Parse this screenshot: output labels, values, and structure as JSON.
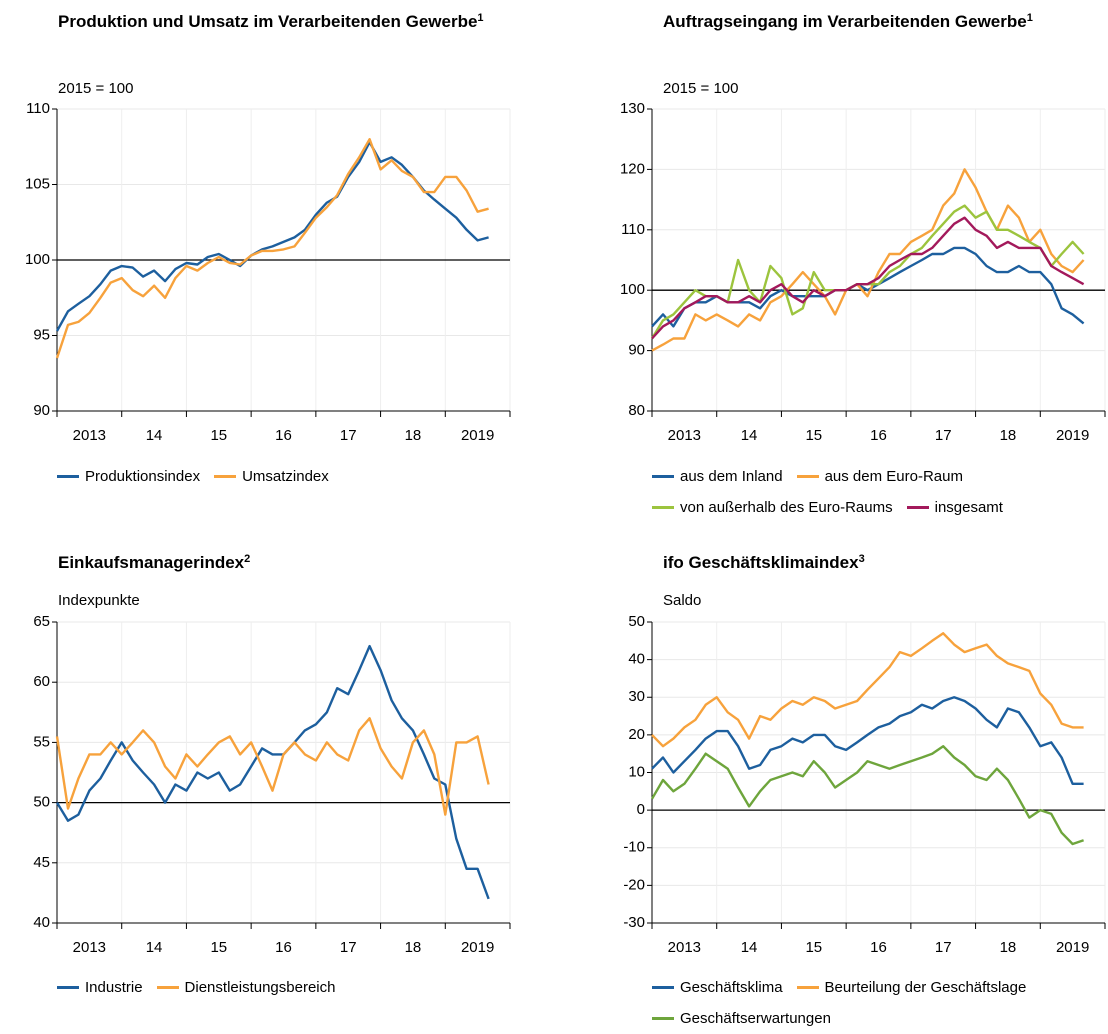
{
  "chart_data": [
    {
      "type": "line",
      "title": "Produktion und Umsatz im Verarbeitenden Gewerbe",
      "footnote": "1",
      "unit": "2015 = 100",
      "x": [
        2013,
        2013.17,
        2013.33,
        2013.5,
        2013.67,
        2013.83,
        2014,
        2014.17,
        2014.33,
        2014.5,
        2014.67,
        2014.83,
        2015,
        2015.17,
        2015.33,
        2015.5,
        2015.67,
        2015.83,
        2016,
        2016.17,
        2016.33,
        2016.5,
        2016.67,
        2016.83,
        2017,
        2017.17,
        2017.33,
        2017.5,
        2017.67,
        2017.83,
        2018,
        2018.17,
        2018.33,
        2018.5,
        2018.67,
        2018.83,
        2019,
        2019.17,
        2019.33,
        2019.5,
        2019.67
      ],
      "xlim": [
        2013,
        2020
      ],
      "xticks": [
        2013,
        2014,
        2015,
        2016,
        2017,
        2018,
        2019,
        2020
      ],
      "xlabels": [
        "2013",
        "14",
        "15",
        "16",
        "17",
        "18",
        "2019"
      ],
      "ylim": [
        90,
        110
      ],
      "yticks": [
        90,
        95,
        100,
        105,
        110
      ],
      "reference_line": 100,
      "grid": true,
      "series": [
        {
          "name": "Produktionsindex",
          "color": "#1d5f9e",
          "values": [
            95.3,
            96.6,
            97.1,
            97.6,
            98.4,
            99.3,
            99.6,
            99.5,
            98.9,
            99.3,
            98.6,
            99.4,
            99.8,
            99.7,
            100.2,
            100.4,
            100.0,
            99.6,
            100.3,
            100.7,
            100.9,
            101.2,
            101.5,
            102.0,
            103.0,
            103.8,
            104.2,
            105.5,
            106.5,
            107.8,
            106.5,
            106.8,
            106.3,
            105.5,
            104.6,
            104.0,
            103.4,
            102.8,
            102.0,
            101.3,
            101.5
          ]
        },
        {
          "name": "Umsatzindex",
          "color": "#f7a23c",
          "values": [
            93.5,
            95.7,
            95.9,
            96.5,
            97.5,
            98.5,
            98.8,
            98.0,
            97.6,
            98.3,
            97.5,
            98.8,
            99.6,
            99.3,
            99.8,
            100.2,
            99.8,
            99.7,
            100.3,
            100.6,
            100.6,
            100.7,
            100.9,
            101.8,
            102.8,
            103.5,
            104.3,
            105.7,
            106.8,
            108.0,
            106.0,
            106.6,
            105.9,
            105.5,
            104.5,
            104.5,
            105.5,
            105.5,
            104.6,
            103.2,
            103.4
          ]
        }
      ]
    },
    {
      "type": "line",
      "title": "Auftragseingang im Verarbeitenden Gewerbe",
      "footnote": "1",
      "unit": "2015 = 100",
      "x": [
        2013,
        2013.17,
        2013.33,
        2013.5,
        2013.67,
        2013.83,
        2014,
        2014.17,
        2014.33,
        2014.5,
        2014.67,
        2014.83,
        2015,
        2015.17,
        2015.33,
        2015.5,
        2015.67,
        2015.83,
        2016,
        2016.17,
        2016.33,
        2016.5,
        2016.67,
        2016.83,
        2017,
        2017.17,
        2017.33,
        2017.5,
        2017.67,
        2017.83,
        2018,
        2018.17,
        2018.33,
        2018.5,
        2018.67,
        2018.83,
        2019,
        2019.17,
        2019.33,
        2019.5,
        2019.67
      ],
      "xlim": [
        2013,
        2020
      ],
      "xticks": [
        2013,
        2014,
        2015,
        2016,
        2017,
        2018,
        2019,
        2020
      ],
      "xlabels": [
        "2013",
        "14",
        "15",
        "16",
        "17",
        "18",
        "2019"
      ],
      "ylim": [
        80,
        130
      ],
      "yticks": [
        80,
        90,
        100,
        110,
        120,
        130
      ],
      "reference_line": 100,
      "grid": true,
      "series": [
        {
          "name": "aus dem Inland",
          "color": "#1d5f9e",
          "values": [
            94,
            96,
            94,
            97,
            98,
            98,
            99,
            98,
            98,
            98,
            97,
            99,
            100,
            99,
            99,
            99,
            99,
            100,
            100,
            101,
            100,
            101,
            102,
            103,
            104,
            105,
            106,
            106,
            107,
            107,
            106,
            104,
            103,
            103,
            104,
            103,
            103,
            101,
            97,
            96,
            94.5
          ]
        },
        {
          "name": "aus dem Euro-Raum",
          "color": "#f7a23c",
          "values": [
            90,
            91,
            92,
            92,
            96,
            95,
            96,
            95,
            94,
            96,
            95,
            98,
            99,
            101,
            103,
            101,
            99,
            96,
            100,
            101,
            99,
            103,
            106,
            106,
            108,
            109,
            110,
            114,
            116,
            120,
            117,
            113,
            110,
            114,
            112,
            108,
            110,
            106,
            104,
            103,
            105
          ]
        },
        {
          "name": "von außerhalb des Euro-Raums",
          "color": "#9cc43e",
          "values": [
            92,
            95,
            96,
            98,
            100,
            99,
            99,
            98,
            105,
            100,
            98,
            104,
            102,
            96,
            97,
            103,
            100,
            100,
            100,
            101,
            101,
            101,
            103,
            104,
            106,
            107,
            109,
            111,
            113,
            114,
            112,
            113,
            110,
            110,
            109,
            108,
            107,
            104,
            106,
            108,
            106
          ]
        },
        {
          "name": "insgesamt",
          "color": "#a3195b",
          "values": [
            92,
            94,
            95,
            97,
            98,
            99,
            99,
            98,
            98,
            99,
            98,
            100,
            101,
            99,
            98,
            100,
            99,
            100,
            100,
            101,
            101,
            102,
            104,
            105,
            106,
            106,
            107,
            109,
            111,
            112,
            110,
            109,
            107,
            108,
            107,
            107,
            107,
            104,
            103,
            102,
            101
          ]
        }
      ]
    },
    {
      "type": "line",
      "title": "Einkaufsmanagerindex",
      "footnote": "2",
      "unit": "Indexpunkte",
      "x": [
        2013,
        2013.17,
        2013.33,
        2013.5,
        2013.67,
        2013.83,
        2014,
        2014.17,
        2014.33,
        2014.5,
        2014.67,
        2014.83,
        2015,
        2015.17,
        2015.33,
        2015.5,
        2015.67,
        2015.83,
        2016,
        2016.17,
        2016.33,
        2016.5,
        2016.67,
        2016.83,
        2017,
        2017.17,
        2017.33,
        2017.5,
        2017.67,
        2017.83,
        2018,
        2018.17,
        2018.33,
        2018.5,
        2018.67,
        2018.83,
        2019,
        2019.17,
        2019.33,
        2019.5,
        2019.67
      ],
      "xlim": [
        2013,
        2020
      ],
      "xticks": [
        2013,
        2014,
        2015,
        2016,
        2017,
        2018,
        2019,
        2020
      ],
      "xlabels": [
        "2013",
        "14",
        "15",
        "16",
        "17",
        "18",
        "2019"
      ],
      "ylim": [
        40,
        65
      ],
      "yticks": [
        40,
        45,
        50,
        55,
        60,
        65
      ],
      "reference_line": 50,
      "grid": true,
      "series": [
        {
          "name": "Industrie",
          "color": "#1d5f9e",
          "values": [
            50,
            48.5,
            49,
            51,
            52,
            53.5,
            55,
            53.5,
            52.5,
            51.5,
            50,
            51.5,
            51,
            52.5,
            52,
            52.5,
            51,
            51.5,
            53,
            54.5,
            54,
            54,
            55,
            56,
            56.5,
            57.5,
            59.5,
            59,
            61,
            63,
            61,
            58.5,
            57,
            56,
            54,
            52,
            51.5,
            47,
            44.5,
            44.5,
            42
          ]
        },
        {
          "name": "Dienstleistungsbereich",
          "color": "#f7a23c",
          "values": [
            55.5,
            49.5,
            52,
            54,
            54,
            55,
            54,
            55,
            56,
            55,
            53,
            52,
            54,
            53,
            54,
            55,
            55.5,
            54,
            55,
            53,
            51,
            54,
            55,
            54,
            53.5,
            55,
            54,
            53.5,
            56,
            57,
            54.5,
            53,
            52,
            55,
            56,
            54,
            49,
            55,
            55,
            55.5,
            51.5
          ]
        }
      ]
    },
    {
      "type": "line",
      "title": "ifo Geschäftsklimaindex",
      "footnote": "3",
      "unit": "Saldo",
      "x": [
        2013,
        2013.17,
        2013.33,
        2013.5,
        2013.67,
        2013.83,
        2014,
        2014.17,
        2014.33,
        2014.5,
        2014.67,
        2014.83,
        2015,
        2015.17,
        2015.33,
        2015.5,
        2015.67,
        2015.83,
        2016,
        2016.17,
        2016.33,
        2016.5,
        2016.67,
        2016.83,
        2017,
        2017.17,
        2017.33,
        2017.5,
        2017.67,
        2017.83,
        2018,
        2018.17,
        2018.33,
        2018.5,
        2018.67,
        2018.83,
        2019,
        2019.17,
        2019.33,
        2019.5,
        2019.67
      ],
      "xlim": [
        2013,
        2020
      ],
      "xticks": [
        2013,
        2014,
        2015,
        2016,
        2017,
        2018,
        2019,
        2020
      ],
      "xlabels": [
        "2013",
        "14",
        "15",
        "16",
        "17",
        "18",
        "2019"
      ],
      "ylim": [
        -30,
        50
      ],
      "yticks": [
        -30,
        -20,
        -10,
        0,
        10,
        20,
        30,
        40,
        50
      ],
      "reference_line": 0,
      "grid": true,
      "series": [
        {
          "name": "Geschäftsklima",
          "color": "#1d5f9e",
          "values": [
            11,
            14,
            10,
            13,
            16,
            19,
            21,
            21,
            17,
            11,
            12,
            16,
            17,
            19,
            18,
            20,
            20,
            17,
            16,
            18,
            20,
            22,
            23,
            25,
            26,
            28,
            27,
            29,
            30,
            29,
            27,
            24,
            22,
            27,
            26,
            22,
            17,
            18,
            14,
            7,
            7
          ]
        },
        {
          "name": "Beurteilung der Geschäftslage",
          "color": "#f7a23c",
          "values": [
            20,
            17,
            19,
            22,
            24,
            28,
            30,
            26,
            24,
            19,
            25,
            24,
            27,
            29,
            28,
            30,
            29,
            27,
            28,
            29,
            32,
            35,
            38,
            42,
            41,
            43,
            45,
            47,
            44,
            42,
            43,
            44,
            41,
            39,
            38,
            37,
            31,
            28,
            23,
            22,
            22
          ]
        },
        {
          "name": "Geschäftserwartungen",
          "color": "#6ea53c",
          "values": [
            3,
            8,
            5,
            7,
            11,
            15,
            13,
            11,
            6,
            1,
            5,
            8,
            9,
            10,
            9,
            13,
            10,
            6,
            8,
            10,
            13,
            12,
            11,
            12,
            13,
            14,
            15,
            17,
            14,
            12,
            9,
            8,
            11,
            8,
            3,
            -2,
            0,
            -1,
            -6,
            -9,
            -8
          ]
        }
      ]
    }
  ]
}
